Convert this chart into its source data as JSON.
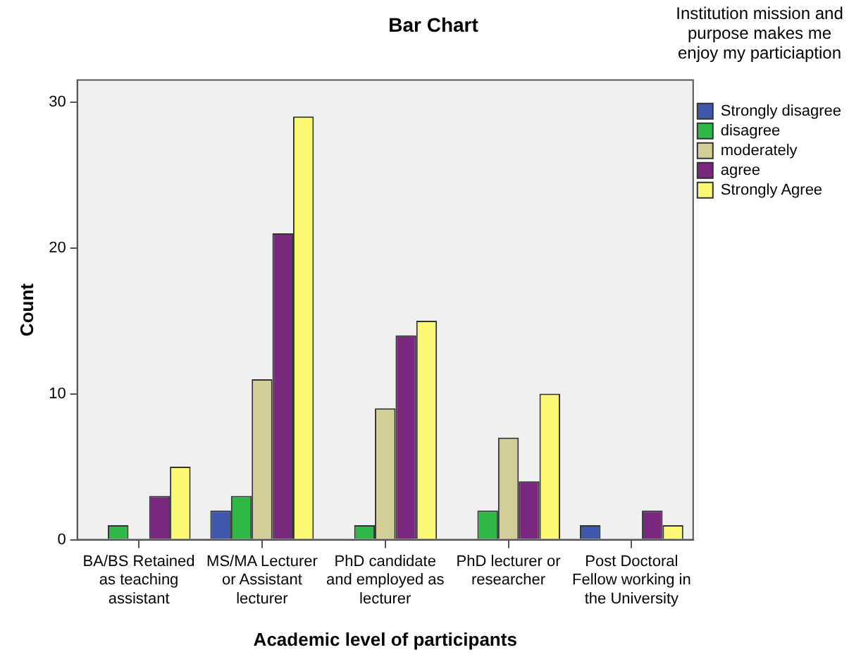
{
  "chart_data": {
    "type": "bar",
    "title": "Bar Chart",
    "xlabel": "Academic level of participants",
    "ylabel": "Count",
    "legend_title": "Institution mission and purpose makes me enjoy my particiaption",
    "categories": [
      "BA/BS Retained as teaching assistant",
      "MS/MA Lecturer or Assistant lecturer",
      "PhD candidate and employed as lecturer",
      "PhD lecturer or researcher",
      "Post Doctoral Fellow working in the University"
    ],
    "series": [
      {
        "name": "Strongly disagree",
        "color": "#3e58ac",
        "values": [
          null,
          2,
          null,
          null,
          1
        ]
      },
      {
        "name": "disagree",
        "color": "#2eb848",
        "values": [
          1,
          3,
          1,
          2,
          null
        ]
      },
      {
        "name": "moderately",
        "color": "#d3ce97",
        "values": [
          null,
          11,
          9,
          7,
          null
        ]
      },
      {
        "name": "agree",
        "color": "#79287d",
        "values": [
          3,
          21,
          14,
          4,
          2
        ]
      },
      {
        "name": "Strongly Agree",
        "color": "#fbf873",
        "values": [
          5,
          29,
          15,
          10,
          1
        ]
      }
    ],
    "ylim": [
      0,
      31.5
    ],
    "yticks": [
      0,
      10,
      20,
      30
    ],
    "grid": false,
    "legend": "right"
  }
}
